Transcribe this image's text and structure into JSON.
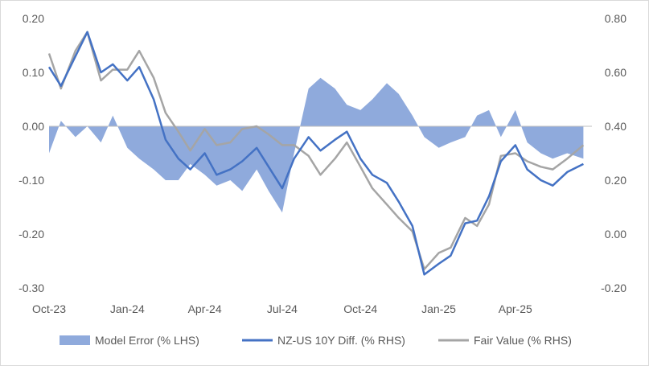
{
  "chart_data": {
    "type": "area+line",
    "title": "",
    "xlabel": "",
    "ylabel_left": "",
    "ylabel_right": "",
    "x_ticks": [
      "Oct-23",
      "Jan-24",
      "Apr-24",
      "Jul-24",
      "Oct-24",
      "Jan-25",
      "Apr-25"
    ],
    "x_range": [
      "2023-10-01",
      "2025-06-30"
    ],
    "y_left": {
      "min": -0.3,
      "max": 0.2,
      "ticks": [
        "0.20",
        "0.10",
        "0.00",
        "-0.10",
        "-0.20",
        "-0.30"
      ]
    },
    "y_right": {
      "min": -0.2,
      "max": 0.8,
      "ticks": [
        "0.80",
        "0.60",
        "0.40",
        "0.20",
        "0.00",
        "-0.20"
      ]
    },
    "grid": false,
    "legend_position": "bottom",
    "colors": {
      "model_error": "#8faadc",
      "nz_us": "#4472c4",
      "fair_value": "#a5a5a5",
      "zero_line": "#bfbfbf"
    },
    "series": [
      {
        "name": "Model Error (% LHS)",
        "axis": "left",
        "type": "area",
        "dates": [
          "2023-10-01",
          "2023-10-15",
          "2023-11-01",
          "2023-11-15",
          "2023-12-01",
          "2023-12-15",
          "2024-01-01",
          "2024-01-15",
          "2024-02-01",
          "2024-02-15",
          "2024-03-01",
          "2024-03-15",
          "2024-04-01",
          "2024-04-15",
          "2024-05-01",
          "2024-05-15",
          "2024-06-01",
          "2024-06-15",
          "2024-07-01",
          "2024-07-15",
          "2024-08-01",
          "2024-08-15",
          "2024-09-01",
          "2024-09-15",
          "2024-10-01",
          "2024-10-15",
          "2024-11-01",
          "2024-11-15",
          "2024-12-01",
          "2024-12-15",
          "2025-01-01",
          "2025-01-15",
          "2025-02-01",
          "2025-02-15",
          "2025-03-01",
          "2025-03-15",
          "2025-04-01",
          "2025-04-15",
          "2025-05-01",
          "2025-05-15",
          "2025-06-01",
          "2025-06-20"
        ],
        "values": [
          -0.05,
          0.01,
          -0.02,
          0.0,
          -0.03,
          0.02,
          -0.04,
          -0.06,
          -0.08,
          -0.1,
          -0.1,
          -0.07,
          -0.09,
          -0.11,
          -0.1,
          -0.12,
          -0.08,
          -0.12,
          -0.16,
          -0.05,
          0.07,
          0.09,
          0.07,
          0.04,
          0.03,
          0.05,
          0.08,
          0.06,
          0.02,
          -0.02,
          -0.04,
          -0.03,
          -0.02,
          0.02,
          0.03,
          -0.02,
          0.03,
          -0.03,
          -0.05,
          -0.06,
          -0.05,
          -0.06
        ]
      },
      {
        "name": "NZ-US 10Y Diff. (% RHS)",
        "axis": "right",
        "type": "line",
        "dates": [
          "2023-10-01",
          "2023-10-15",
          "2023-11-01",
          "2023-11-15",
          "2023-12-01",
          "2023-12-15",
          "2024-01-01",
          "2024-01-15",
          "2024-02-01",
          "2024-02-15",
          "2024-03-01",
          "2024-03-15",
          "2024-04-01",
          "2024-04-15",
          "2024-05-01",
          "2024-05-15",
          "2024-06-01",
          "2024-06-15",
          "2024-07-01",
          "2024-07-15",
          "2024-08-01",
          "2024-08-15",
          "2024-09-01",
          "2024-09-15",
          "2024-10-01",
          "2024-10-15",
          "2024-11-01",
          "2024-11-15",
          "2024-12-01",
          "2024-12-15",
          "2025-01-01",
          "2025-01-15",
          "2025-02-01",
          "2025-02-15",
          "2025-03-01",
          "2025-03-15",
          "2025-04-01",
          "2025-04-15",
          "2025-05-01",
          "2025-05-15",
          "2025-06-01",
          "2025-06-20"
        ],
        "values": [
          0.62,
          0.55,
          0.66,
          0.75,
          0.6,
          0.63,
          0.57,
          0.62,
          0.5,
          0.35,
          0.28,
          0.24,
          0.3,
          0.22,
          0.24,
          0.27,
          0.32,
          0.25,
          0.17,
          0.28,
          0.36,
          0.31,
          0.35,
          0.38,
          0.28,
          0.22,
          0.19,
          0.12,
          0.03,
          -0.15,
          -0.11,
          -0.08,
          0.04,
          0.05,
          0.14,
          0.27,
          0.33,
          0.24,
          0.2,
          0.18,
          0.23,
          0.26
        ]
      },
      {
        "name": "Fair Value (% RHS)",
        "axis": "right",
        "type": "line",
        "dates": [
          "2023-10-01",
          "2023-10-15",
          "2023-11-01",
          "2023-11-15",
          "2023-12-01",
          "2023-12-15",
          "2024-01-01",
          "2024-01-15",
          "2024-02-01",
          "2024-02-15",
          "2024-03-01",
          "2024-03-15",
          "2024-04-01",
          "2024-04-15",
          "2024-05-01",
          "2024-05-15",
          "2024-06-01",
          "2024-06-15",
          "2024-07-01",
          "2024-07-15",
          "2024-08-01",
          "2024-08-15",
          "2024-09-01",
          "2024-09-15",
          "2024-10-01",
          "2024-10-15",
          "2024-11-01",
          "2024-11-15",
          "2024-12-01",
          "2024-12-15",
          "2025-01-01",
          "2025-01-15",
          "2025-02-01",
          "2025-02-15",
          "2025-03-01",
          "2025-03-15",
          "2025-04-01",
          "2025-04-15",
          "2025-05-01",
          "2025-05-15",
          "2025-06-01",
          "2025-06-20"
        ],
        "values": [
          0.67,
          0.54,
          0.68,
          0.75,
          0.57,
          0.61,
          0.61,
          0.68,
          0.58,
          0.45,
          0.38,
          0.31,
          0.39,
          0.33,
          0.34,
          0.39,
          0.4,
          0.37,
          0.33,
          0.33,
          0.29,
          0.22,
          0.28,
          0.34,
          0.25,
          0.17,
          0.11,
          0.06,
          0.01,
          -0.13,
          -0.07,
          -0.05,
          0.06,
          0.03,
          0.11,
          0.29,
          0.3,
          0.27,
          0.25,
          0.24,
          0.28,
          0.33
        ]
      }
    ]
  }
}
